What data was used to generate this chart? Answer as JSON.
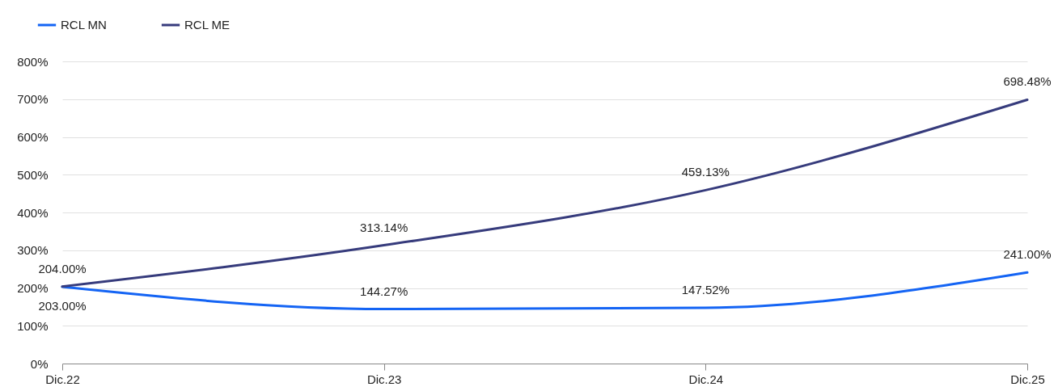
{
  "chart_data": {
    "type": "line",
    "categories": [
      "Dic.22",
      "Dic.23",
      "Dic.24",
      "Dic.25"
    ],
    "series": [
      {
        "name": "RCL MN",
        "color": "#1464f4",
        "values": [
          203,
          144.27,
          147.52,
          241
        ],
        "value_labels": [
          "203.00%",
          "144.27%",
          "147.52%",
          "241.00%"
        ]
      },
      {
        "name": "RCL ME",
        "color": "#363b7c",
        "values": [
          204,
          313.14,
          459.13,
          698.48
        ],
        "value_labels": [
          "204.00%",
          "313.14%",
          "459.13%",
          "698.48%"
        ]
      }
    ],
    "ylim": [
      0,
      800
    ],
    "yticks": [
      {
        "value": 0,
        "label": "0%"
      },
      {
        "value": 100,
        "label": "100%"
      },
      {
        "value": 200,
        "label": "200%"
      },
      {
        "value": 300,
        "label": "300%"
      },
      {
        "value": 400,
        "label": "400%"
      },
      {
        "value": 500,
        "label": "500%"
      },
      {
        "value": 600,
        "label": "600%"
      },
      {
        "value": 700,
        "label": "700%"
      },
      {
        "value": 800,
        "label": "800%"
      }
    ],
    "grid": "y",
    "legend": "top left",
    "line_style": "solid",
    "marker": "none"
  }
}
